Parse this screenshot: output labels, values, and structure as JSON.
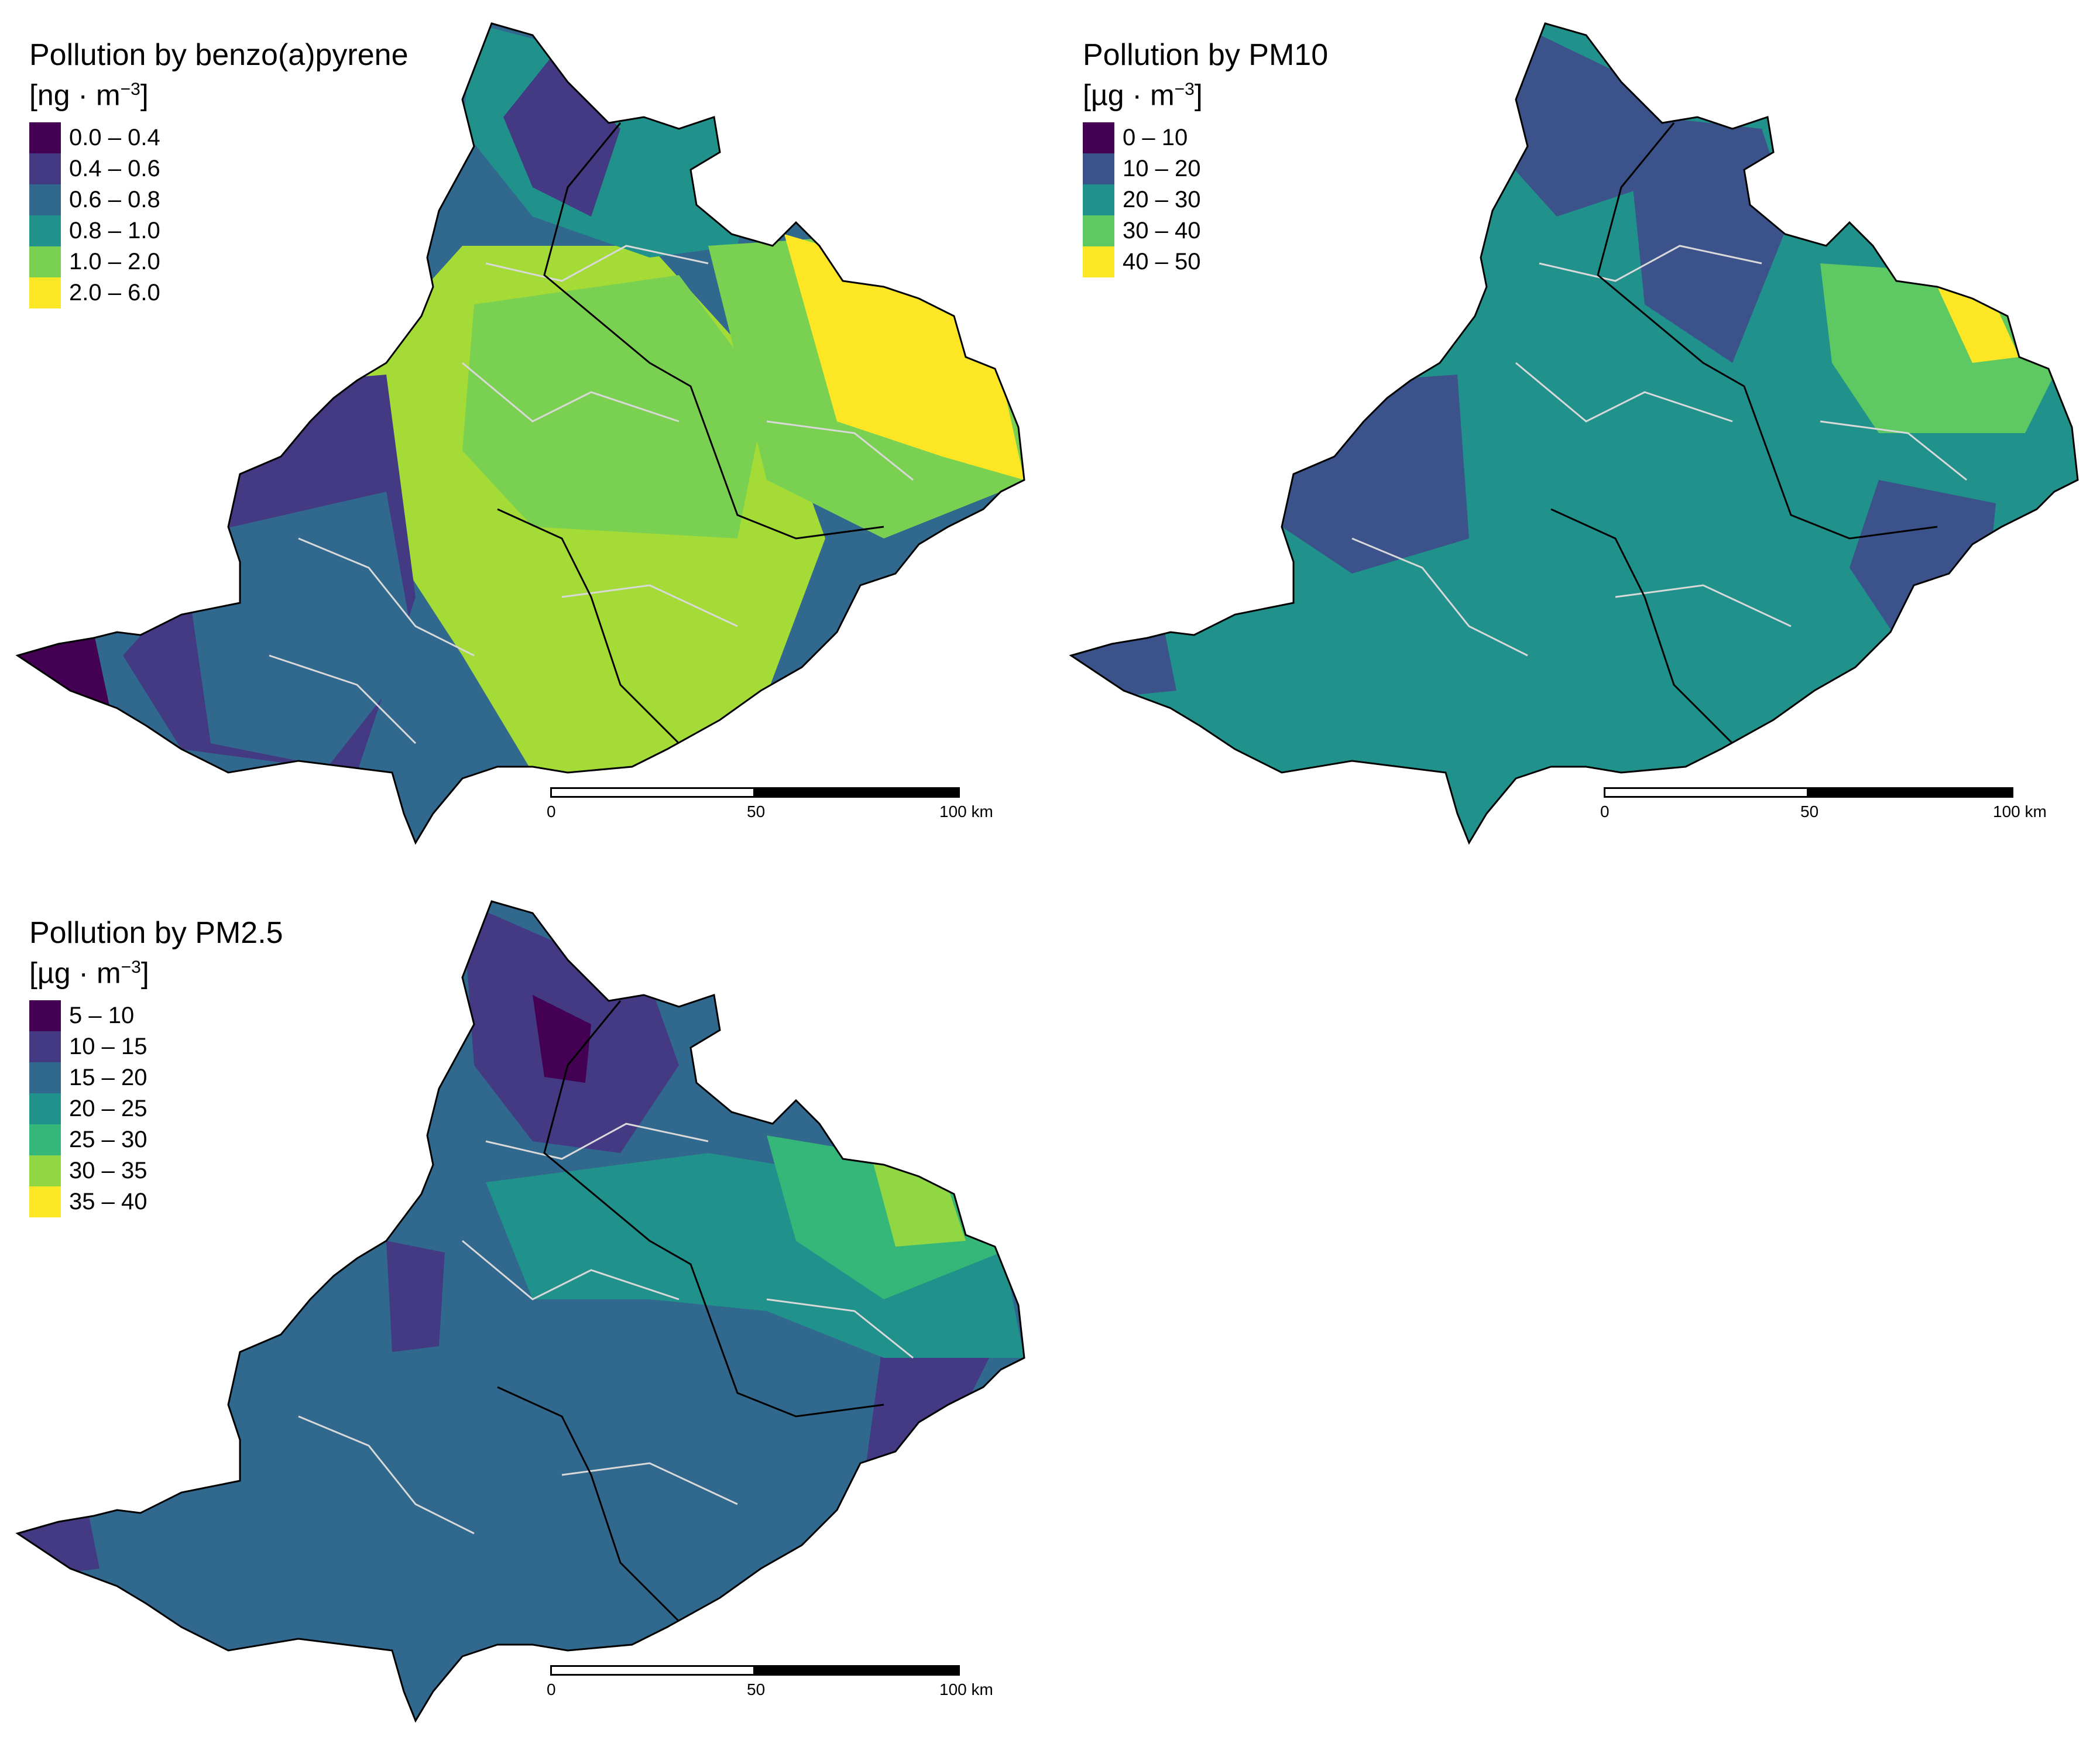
{
  "panels": [
    {
      "id": "benzo",
      "title": "Pollution by benzo(a)pyrene",
      "unit_prefix": "[ng · m",
      "unit_exp": "−3",
      "unit_suffix": "]",
      "legend": [
        {
          "label": "0.0 – 0.4",
          "color": "#440154"
        },
        {
          "label": "0.4 – 0.6",
          "color": "#443983"
        },
        {
          "label": "0.6 – 0.8",
          "color": "#31688e"
        },
        {
          "label": "0.8 – 1.0",
          "color": "#21918c"
        },
        {
          "label": "1.0 – 2.0",
          "color": "#7ad151"
        },
        {
          "label": "2.0 – 6.0",
          "color": "#fde725"
        }
      ],
      "scalebar": {
        "ticks": [
          "0",
          "50",
          "100 km"
        ]
      }
    },
    {
      "id": "pm10",
      "title": "Pollution by PM10",
      "unit_prefix": "[µg · m",
      "unit_exp": "−3",
      "unit_suffix": "]",
      "legend": [
        {
          "label": "0 – 10",
          "color": "#440154"
        },
        {
          "label": "10 – 20",
          "color": "#3b528b"
        },
        {
          "label": "20 – 30",
          "color": "#21918c"
        },
        {
          "label": "30 – 40",
          "color": "#5ec962"
        },
        {
          "label": "40 – 50",
          "color": "#fde725"
        }
      ],
      "scalebar": {
        "ticks": [
          "0",
          "50",
          "100 km"
        ]
      }
    },
    {
      "id": "pm25",
      "title": "Pollution by PM2.5",
      "unit_prefix": "[µg · m",
      "unit_exp": "−3",
      "unit_suffix": "]",
      "legend": [
        {
          "label": "5 – 10",
          "color": "#440154"
        },
        {
          "label": "10 – 15",
          "color": "#443983"
        },
        {
          "label": "15 – 20",
          "color": "#31688e"
        },
        {
          "label": "20 – 25",
          "color": "#21918c"
        },
        {
          "label": "25 – 30",
          "color": "#35b779"
        },
        {
          "label": "30 – 35",
          "color": "#90d743"
        },
        {
          "label": "35 – 40",
          "color": "#fde725"
        }
      ],
      "scalebar": {
        "ticks": [
          "0",
          "50",
          "100 km"
        ]
      }
    }
  ]
}
